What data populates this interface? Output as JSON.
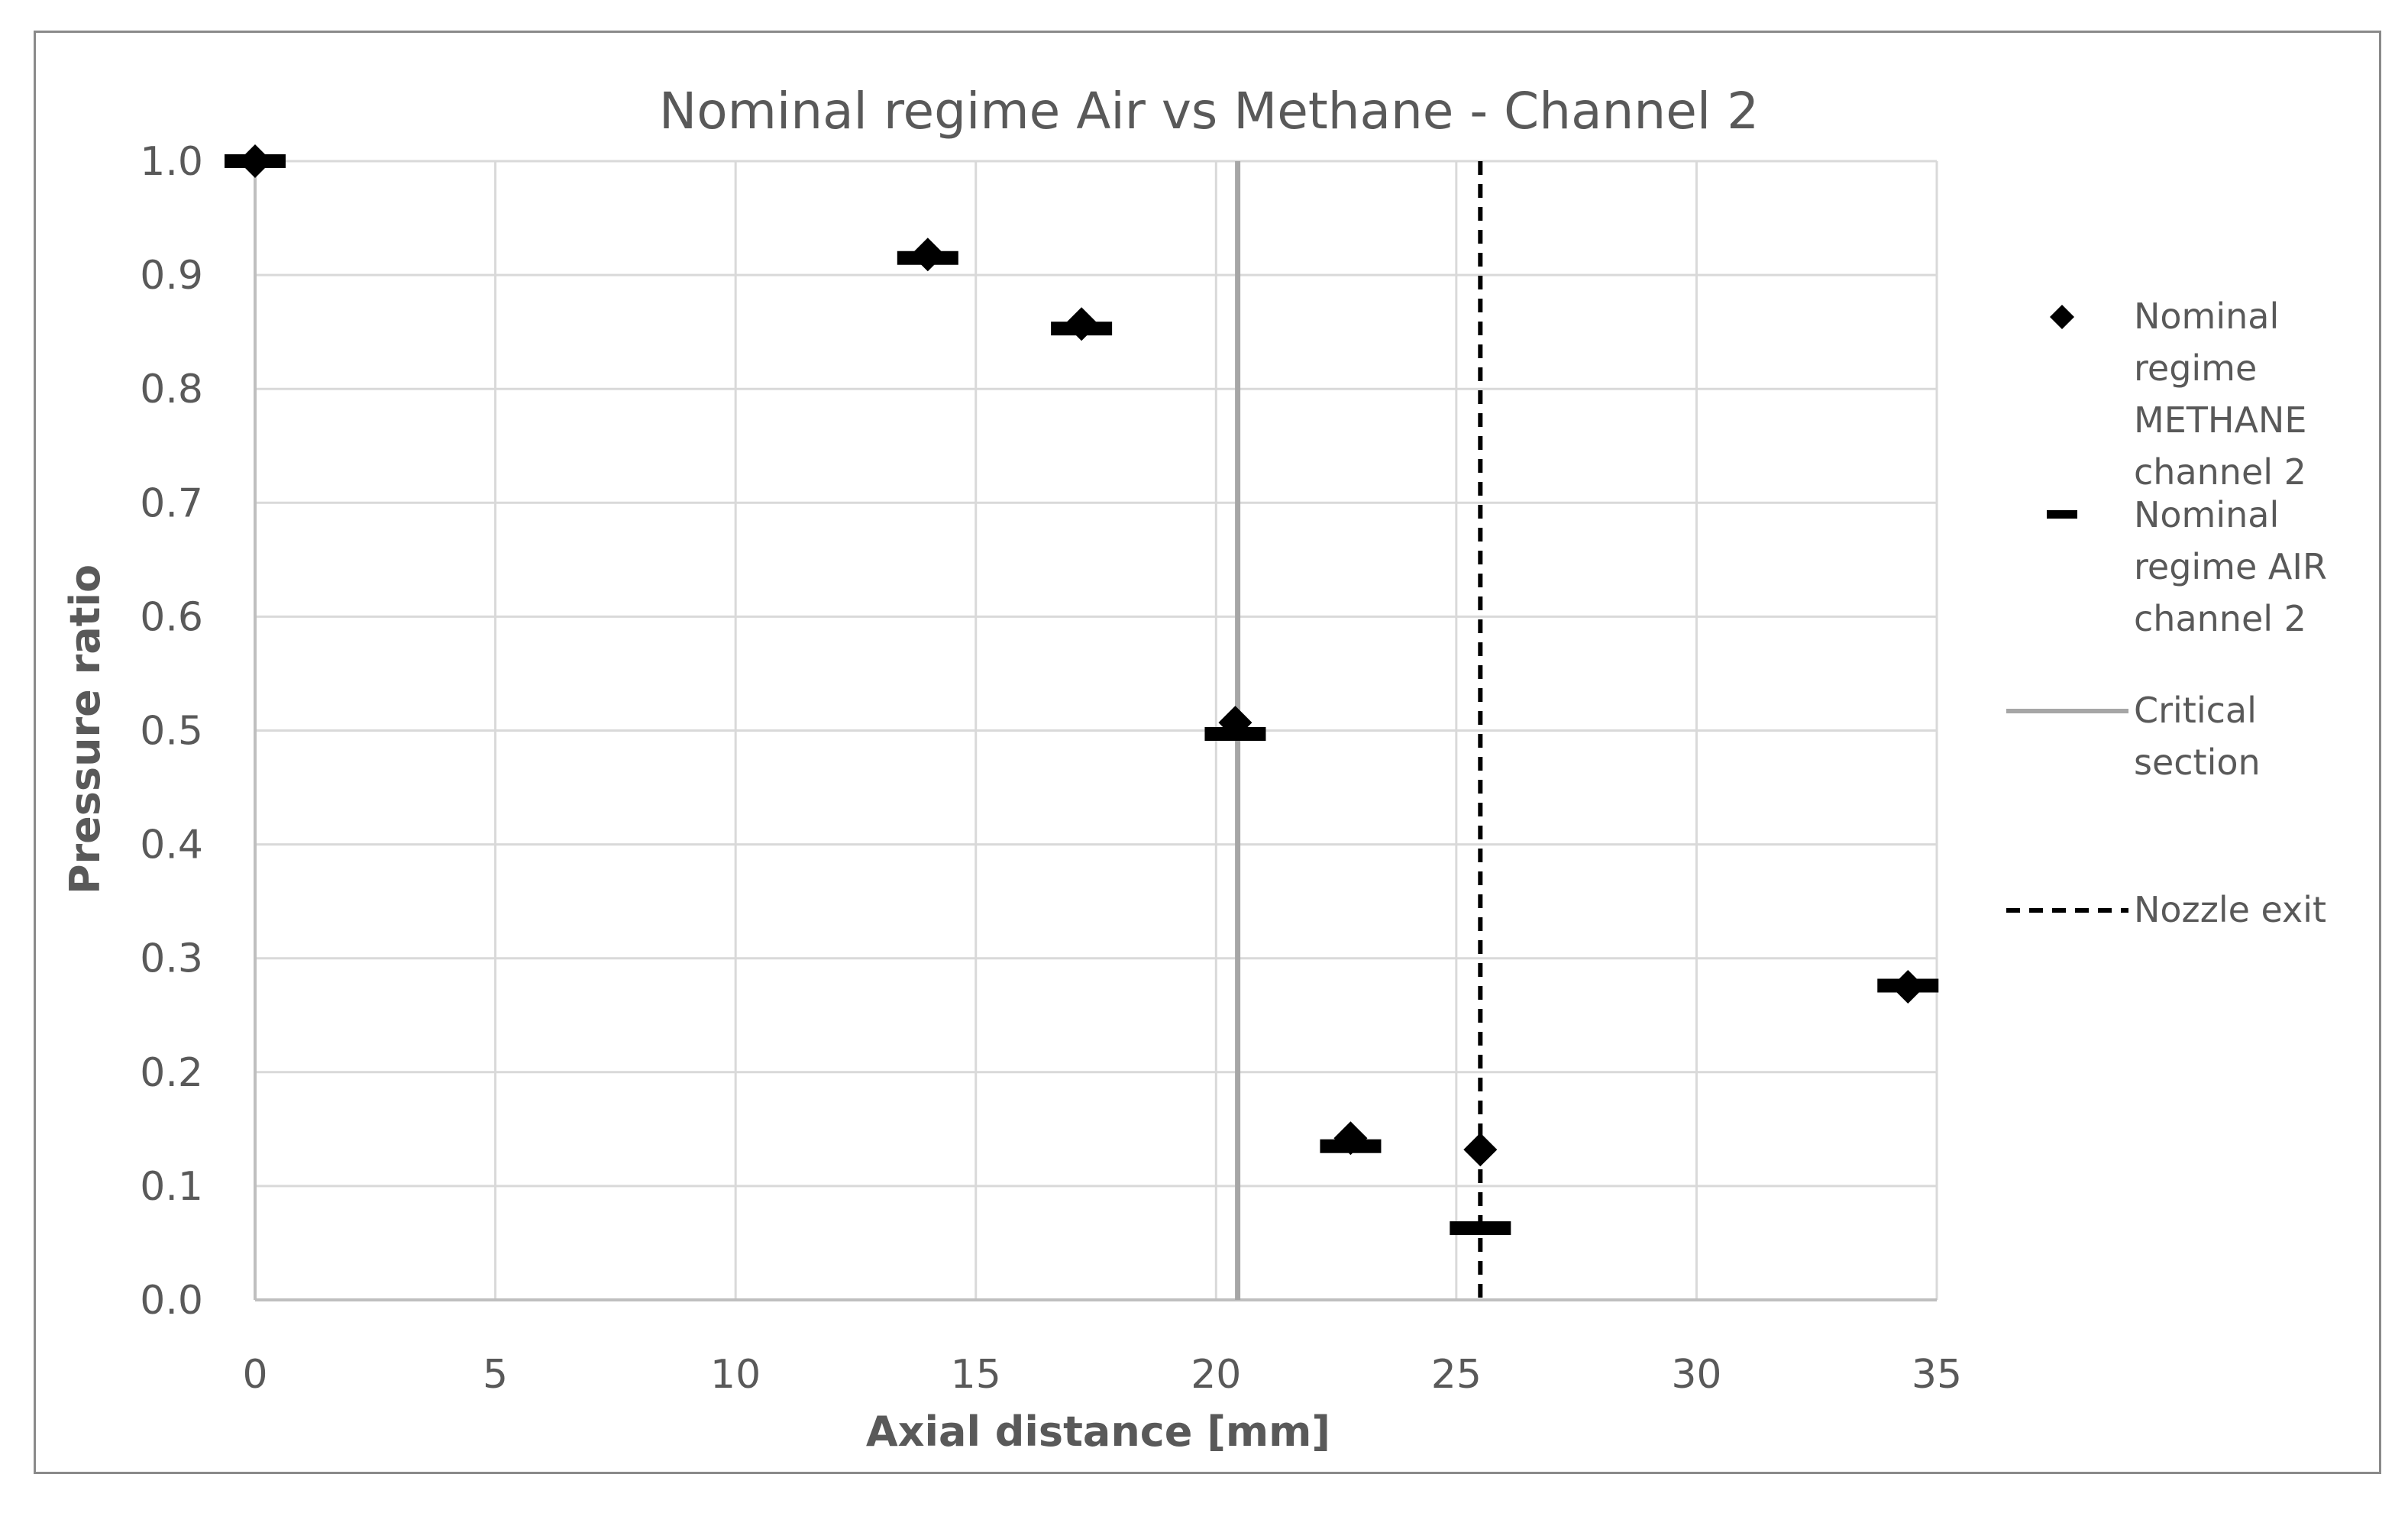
{
  "chart_data": {
    "type": "scatter",
    "title": "Nominal regime Air vs Methane - Channel 2",
    "xlabel": "Axial distance [mm]",
    "ylabel": "Pressure ratio",
    "xlim": [
      0,
      35
    ],
    "ylim": [
      0,
      1.0
    ],
    "x_ticks": [
      "0",
      "5",
      "10",
      "15",
      "20",
      "25",
      "30",
      "35"
    ],
    "y_ticks": [
      "0.0",
      "0.1",
      "0.2",
      "0.3",
      "0.4",
      "0.5",
      "0.6",
      "0.7",
      "0.8",
      "0.9",
      "1.0"
    ],
    "grid": true,
    "legend_position": "right",
    "series": [
      {
        "name": "Nominal regime METHANE channel 2",
        "legend_lines": [
          "Nominal",
          "regime",
          "METHANE",
          "channel 2"
        ],
        "marker": "diamond",
        "color": "#000000",
        "points": [
          {
            "x": 0,
            "y": 1.0
          },
          {
            "x": 14.0,
            "y": 0.918
          },
          {
            "x": 17.2,
            "y": 0.857
          },
          {
            "x": 20.4,
            "y": 0.507
          },
          {
            "x": 22.8,
            "y": 0.142
          },
          {
            "x": 25.5,
            "y": 0.132
          },
          {
            "x": 34.4,
            "y": 0.275
          }
        ]
      },
      {
        "name": "Nominal regime AIR channel 2",
        "legend_lines": [
          "Nominal",
          "regime AIR",
          "channel 2"
        ],
        "marker": "dash",
        "color": "#000000",
        "points": [
          {
            "x": 0,
            "y": 1.0
          },
          {
            "x": 14.0,
            "y": 0.915
          },
          {
            "x": 17.2,
            "y": 0.853
          },
          {
            "x": 20.4,
            "y": 0.497
          },
          {
            "x": 22.8,
            "y": 0.135
          },
          {
            "x": 25.5,
            "y": 0.063
          },
          {
            "x": 34.4,
            "y": 0.276
          }
        ]
      }
    ],
    "reference_lines": [
      {
        "name": "Critical section",
        "legend_lines": [
          "Critical",
          "section"
        ],
        "x": 20.45,
        "style": "solid",
        "color": "#a6a6a6"
      },
      {
        "name": "Nozzle exit",
        "legend_lines": [
          "Nozzle exit"
        ],
        "x": 25.5,
        "style": "dashed",
        "color": "#000000"
      }
    ]
  }
}
